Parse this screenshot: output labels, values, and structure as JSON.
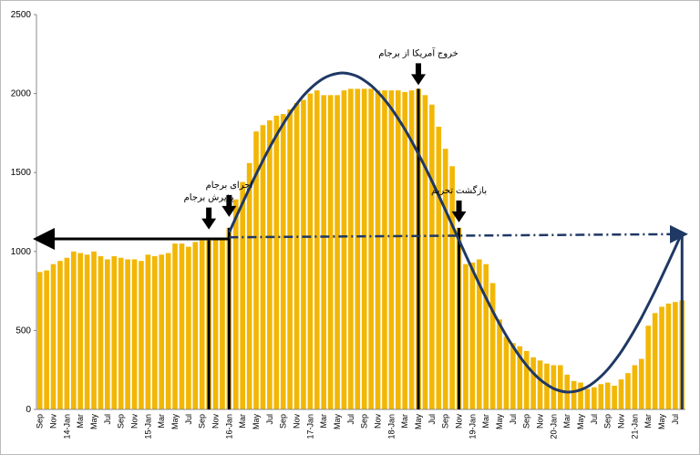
{
  "chart_data": {
    "type": "bar",
    "categories": [
      "Sep",
      null,
      "Nov",
      null,
      "14-Jan",
      null,
      "Mar",
      null,
      "May",
      null,
      "Jul",
      null,
      "Sep",
      null,
      "Nov",
      null,
      "15-Jan",
      null,
      "Mar",
      null,
      "May",
      null,
      "Jul",
      null,
      "Sep",
      null,
      "Nov",
      null,
      "16-Jan",
      null,
      "Mar",
      null,
      "May",
      null,
      "Jul",
      null,
      "Sep",
      null,
      "Nov",
      null,
      "17-Jan",
      null,
      "Mar",
      null,
      "May",
      null,
      "Jul",
      null,
      "Sep",
      null,
      "Nov",
      null,
      "18-Jan",
      null,
      "Mar",
      null,
      "May",
      null,
      "Jul",
      null,
      "Sep",
      null,
      "Nov",
      null,
      "19-Jan",
      null,
      "Mar",
      null,
      "May",
      null,
      "Jul",
      null,
      "Sep",
      null,
      "Nov",
      null,
      "20-Jan",
      null,
      "Mar",
      null,
      "May",
      null,
      "Jul",
      null,
      "Sep",
      null,
      "Nov",
      null,
      "21-Jan",
      null,
      "Mar",
      null,
      "May",
      null,
      "Jul",
      null
    ],
    "series": [
      {
        "type": "bar",
        "color": "#f2b705",
        "values": [
          870,
          880,
          920,
          940,
          960,
          1000,
          990,
          980,
          1000,
          970,
          950,
          970,
          960,
          950,
          950,
          940,
          980,
          970,
          980,
          990,
          1050,
          1050,
          1030,
          1060,
          1070,
          1070,
          1080,
          1080,
          1150,
          1330,
          1440,
          1560,
          1760,
          1800,
          1830,
          1860,
          1870,
          1900,
          1940,
          1960,
          2000,
          2020,
          1990,
          1990,
          1990,
          2020,
          2030,
          2030,
          2030,
          2030,
          2020,
          2020,
          2020,
          2020,
          2010,
          2020,
          2030,
          1990,
          1930,
          1790,
          1650,
          1540,
          1150,
          920,
          930,
          950,
          920,
          800,
          570,
          460,
          420,
          400,
          370,
          330,
          310,
          290,
          280,
          280,
          220,
          180,
          170,
          130,
          140,
          160,
          170,
          150,
          190,
          230,
          280,
          320,
          530,
          610,
          650,
          670,
          680,
          690
        ]
      },
      {
        "type": "line",
        "color": "#1f3864",
        "values": [
          null,
          null,
          null,
          null,
          null,
          null,
          null,
          null,
          null,
          null,
          null,
          null,
          null,
          null,
          null,
          null,
          null,
          null,
          null,
          null,
          null,
          null,
          null,
          null,
          null,
          null,
          null,
          null,
          1120,
          1215,
          1308,
          1400,
          1490,
          1576,
          1659,
          1736,
          1808,
          1875,
          1934,
          1987,
          2031,
          2068,
          2097,
          2116,
          2127,
          2130,
          2123,
          2108,
          2083,
          2051,
          2010,
          1961,
          1905,
          1842,
          1773,
          1698,
          1618,
          1534,
          1446,
          1355,
          1262,
          1167,
          1073,
          978,
          885,
          794,
          706,
          622,
          542,
          467,
          398,
          335,
          279,
          230,
          189,
          157,
          132,
          117,
          110,
          113,
          124,
          143,
          172,
          209,
          253,
          306,
          365,
          432,
          504,
          581,
          664,
          750,
          840,
          932,
          1025,
          1120
        ]
      }
    ],
    "reference_lines": [
      {
        "color": "#000000",
        "style": "solid",
        "values": [
          1080,
          1080
        ]
      },
      {
        "color": "#1f3864",
        "style": "dashdot",
        "values": [
          1090,
          1110
        ]
      }
    ],
    "annotations": [
      "پذیرش برجام",
      "اجرای برجام",
      "خروج آمریکا از برجام",
      "بازگشت تحریم"
    ],
    "ylim": [
      0,
      2500
    ],
    "yticks": [
      0,
      500,
      1000,
      1500,
      2000,
      2500
    ],
    "grid": false
  }
}
